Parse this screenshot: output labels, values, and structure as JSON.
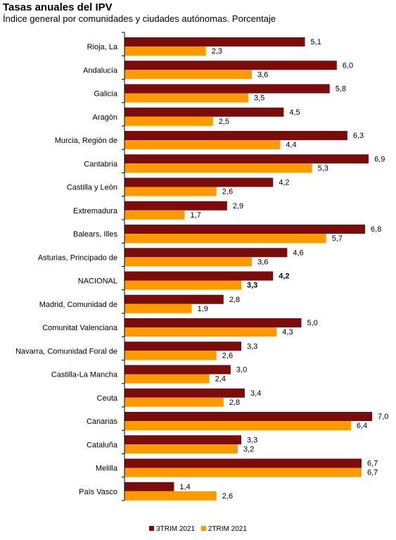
{
  "title": "Tasas anuales del IPV",
  "subtitle": "Índice general por comunidades y ciudades autónomas. Porcentaje",
  "colors": {
    "series1": "#7b0c0c",
    "series2": "#ff9900"
  },
  "chart_data": {
    "type": "bar",
    "orientation": "horizontal",
    "categories": [
      "Rioja, La",
      "Andalucía",
      "Galicia",
      "Aragón",
      "Murcia, Región de",
      "Cantabria",
      "Castilla y León",
      "Extremadura",
      "Balears, Illes",
      "Asturias, Principado de",
      "NACIONAL",
      "Madrid, Comunidad de",
      "Comunitat Valenciana",
      "Navarra, Comunidad Foral de",
      "Castilla-La Mancha",
      "Ceuta",
      "Canarias",
      "Cataluña",
      "Melilla",
      "País Vasco"
    ],
    "value_labels_1": [
      "5,1",
      "6,0",
      "5,8",
      "4,5",
      "6,3",
      "6,9",
      "4,2",
      "2,9",
      "6,8",
      "4,6",
      "4,2",
      "2,8",
      "5,0",
      "3,3",
      "3,0",
      "3,4",
      "7,0",
      "3,3",
      "6,7",
      "1,4"
    ],
    "value_labels_2": [
      "2,3",
      "3,6",
      "3,5",
      "2,5",
      "4,4",
      "5,3",
      "2,6",
      "1,7",
      "5,7",
      "3,6",
      "3,3",
      "1,9",
      "4,3",
      "2,6",
      "2,4",
      "2,8",
      "6,4",
      "3,2",
      "6,7",
      "2,6"
    ],
    "series": [
      {
        "name": "3TRIM 2021",
        "values": [
          5.1,
          6.0,
          5.8,
          4.5,
          6.3,
          6.9,
          4.2,
          2.9,
          6.8,
          4.6,
          4.2,
          2.8,
          5.0,
          3.3,
          3.0,
          3.4,
          7.0,
          3.3,
          6.7,
          1.4
        ]
      },
      {
        "name": "2TRIM 2021",
        "values": [
          2.3,
          3.6,
          3.5,
          2.5,
          4.4,
          5.3,
          2.6,
          1.7,
          5.7,
          3.6,
          3.3,
          1.9,
          4.3,
          2.6,
          2.4,
          2.8,
          6.4,
          3.2,
          6.7,
          2.6
        ]
      }
    ],
    "highlight_category": "NACIONAL",
    "xlim": [
      0,
      7.2
    ],
    "legend_position": "bottom",
    "grid": false
  }
}
